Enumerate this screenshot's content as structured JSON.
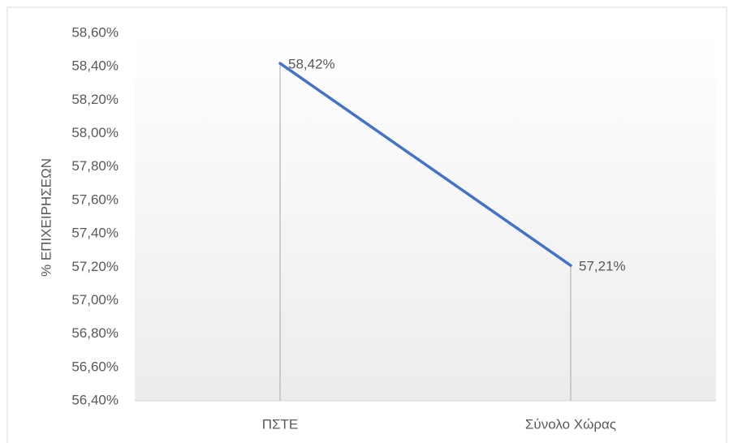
{
  "chart_data": {
    "type": "line",
    "y_label": "% ΕΠΙΧΕΙΡΗΣΕΩΝ",
    "categories": [
      "ΠΣΤΕ",
      "Σύνολο Χώρας"
    ],
    "values": [
      58.42,
      57.21
    ],
    "value_labels": [
      "58,42%",
      "57,21%"
    ],
    "color": "#4472c4",
    "drop_lines": true,
    "grid": false,
    "ylim": [
      56.4,
      58.6
    ],
    "yticks": [
      {
        "value": 56.4,
        "label": "56,40%"
      },
      {
        "value": 56.6,
        "label": "56,60%"
      },
      {
        "value": 56.8,
        "label": "56,80%"
      },
      {
        "value": 57.0,
        "label": "57,00%"
      },
      {
        "value": 57.2,
        "label": "57,20%"
      },
      {
        "value": 57.4,
        "label": "57,40%"
      },
      {
        "value": 57.6,
        "label": "57,60%"
      },
      {
        "value": 57.8,
        "label": "57,80%"
      },
      {
        "value": 58.0,
        "label": "58,00%"
      },
      {
        "value": 58.2,
        "label": "58,20%"
      },
      {
        "value": 58.4,
        "label": "58,40%"
      },
      {
        "value": 58.6,
        "label": "58,60%"
      }
    ]
  }
}
